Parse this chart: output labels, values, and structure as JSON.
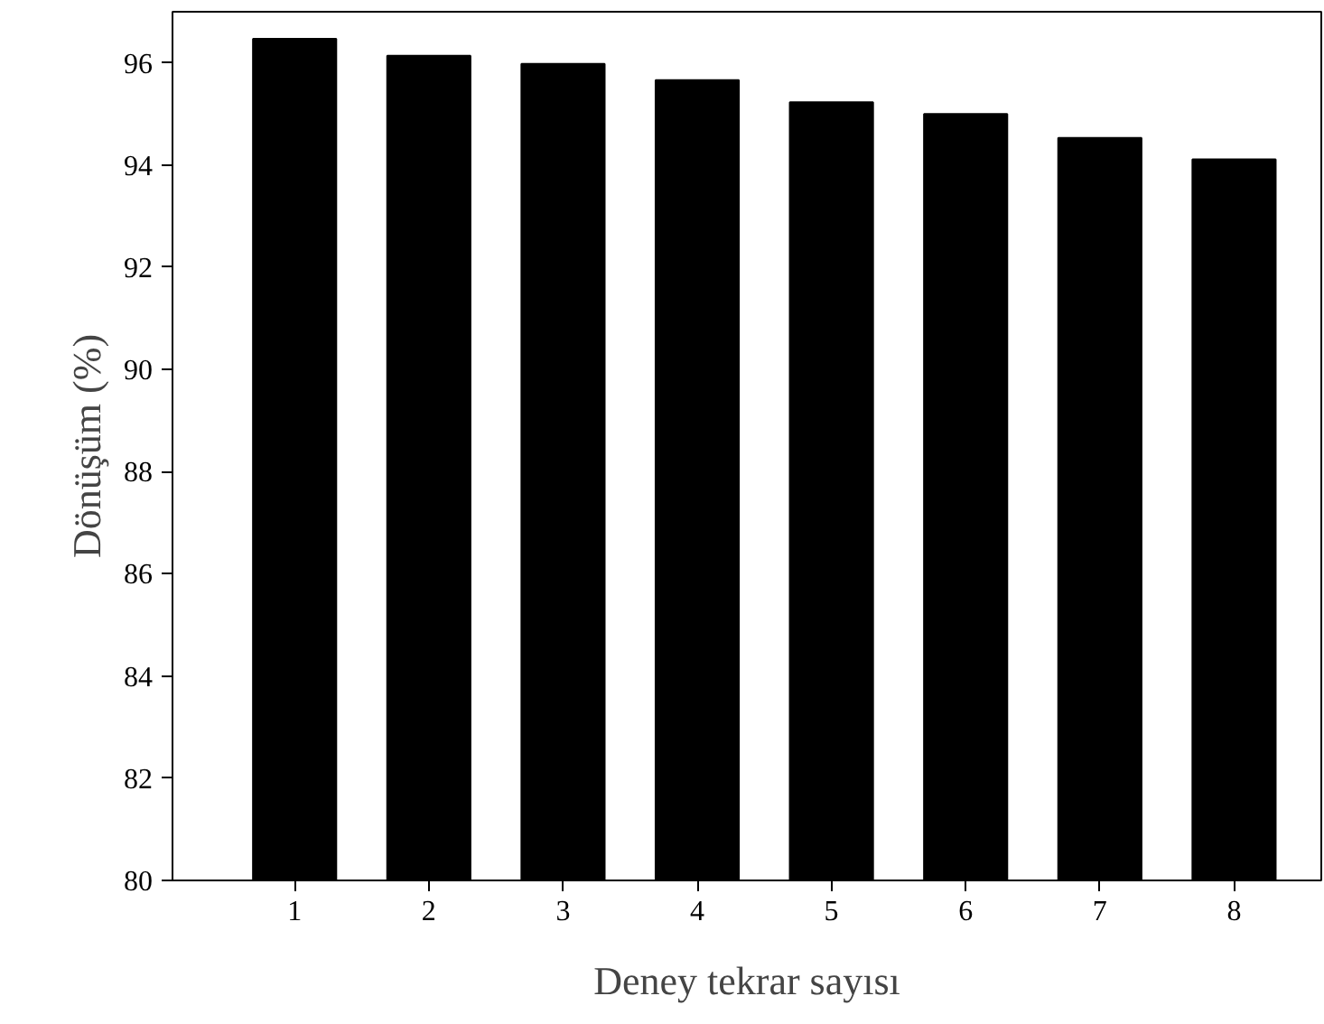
{
  "chart_data": {
    "type": "bar",
    "xlabel": "Deney tekrar sayısı",
    "ylabel": "Dönüşüm (%)",
    "categories": [
      "1",
      "2",
      "3",
      "4",
      "5",
      "6",
      "7",
      "8"
    ],
    "values": [
      96.47,
      96.14,
      95.98,
      95.66,
      95.23,
      95.0,
      94.53,
      94.11
    ],
    "color": "#000000",
    "ylim": [
      80,
      97
    ],
    "yticks": [
      80,
      82,
      84,
      86,
      88,
      90,
      92,
      94,
      96
    ],
    "grid": false
  }
}
